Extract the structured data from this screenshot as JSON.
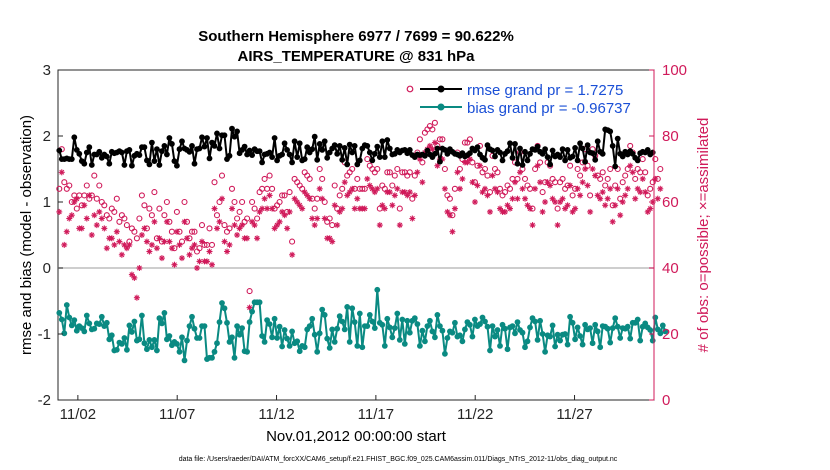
{
  "chart_data": {
    "type": "line",
    "title": "Southern Hemisphere 6977 / 7699 = 90.622%",
    "subtitle": "AIRS_TEMPERATURE @ 831 hPa",
    "xlabel": "Nov.01,2012 00:00:00 start",
    "ylabel_left": "rmse and bias (model - observation)",
    "ylabel_right": "# of obs: o=possible; ×=assimilated",
    "footnote": "data file: /Users/raeder/DAI/ATM_forcXX/CAM6_setup/f.e21.FHIST_BGC.f09_025.CAM6assim.011/Diags_NTrS_2012-11/obs_diag_output.nc",
    "ylim_left": [
      -2,
      3
    ],
    "ylim_right": [
      0,
      100
    ],
    "xlim": [
      0.5,
      30.5
    ],
    "x_tick_values": [
      1.5,
      6.5,
      11.5,
      16.5,
      21.5,
      26.5
    ],
    "x_tick_labels": [
      "11/02",
      "11/07",
      "11/12",
      "11/17",
      "11/22",
      "11/27"
    ],
    "y_ticks_left": [
      "-2",
      "-1",
      "0",
      "1",
      "2",
      "3"
    ],
    "y_ticks_right": [
      "0",
      "20",
      "40",
      "60",
      "80",
      "100"
    ],
    "grid": false,
    "legend_position": "top-right",
    "colors": {
      "rmse": "#000000",
      "bias": "#0a8a82",
      "obs": "#d01a5a",
      "zero_line": "#bdbdbd",
      "legend_text": "#1a4fd6"
    },
    "series": [
      {
        "name": "rmse grand pr = 1.7275",
        "axis": "left",
        "values": [
          1.78,
          1.65,
          1.65,
          1.66,
          1.65,
          1.65,
          1.98,
          1.79,
          1.73,
          1.62,
          1.58,
          1.75,
          1.83,
          1.56,
          1.72,
          1.72,
          1.76,
          1.67,
          1.72,
          1.69,
          1.58,
          1.76,
          1.74,
          1.75,
          1.77,
          1.75,
          1.56,
          1.77,
          1.79,
          1.55,
          1.7,
          1.73,
          1.71,
          1.83,
          1.83,
          1.63,
          1.57,
          1.9,
          1.62,
          1.8,
          1.56,
          1.77,
          1.85,
          1.72,
          1.97,
          1.88,
          1.62,
          1.55,
          1.8,
          1.92,
          1.81,
          1.79,
          1.76,
          1.85,
          1.58,
          1.8,
          1.81,
          1.98,
          1.84,
          1.97,
          1.66,
          1.9,
          1.85,
          2.04,
          1.81,
          2.01,
          2.01,
          1.65,
          1.7,
          2.11,
          1.99,
          2.07,
          1.74,
          1.79,
          1.84,
          1.72,
          1.78,
          1.71,
          1.8,
          1.77,
          1.77,
          1.6,
          1.72,
          1.73,
          1.75,
          1.68,
          1.97,
          1.63,
          1.7,
          1.72,
          1.89,
          1.79,
          1.72,
          1.6,
          1.92,
          1.68,
          1.89,
          1.63,
          1.65,
          1.83,
          1.75,
          1.8,
          1.99,
          1.64,
          1.88,
          1.79,
          1.92,
          1.67,
          1.75,
          1.81,
          1.86,
          1.73,
          1.85,
          1.64,
          1.82,
          1.57,
          1.87,
          1.75,
          1.85,
          1.57,
          1.63,
          1.81,
          1.86,
          1.85,
          1.75,
          1.63,
          1.73,
          1.84,
          1.68,
          1.92,
          1.68,
          1.94,
          1.81,
          1.72,
          1.73,
          1.79,
          1.75,
          1.78,
          1.79,
          1.74,
          1.79,
          1.71,
          1.68,
          1.72,
          1.71,
          1.72,
          1.7,
          1.78,
          1.72,
          1.68,
          1.73,
          1.81,
          1.61,
          1.81,
          1.79,
          1.73,
          1.8,
          1.76,
          1.73,
          1.72,
          1.7,
          1.74,
          1.69,
          1.71,
          1.74,
          1.81,
          1.78,
          1.83,
          1.72,
          1.67,
          1.64,
          1.86,
          1.8,
          1.78,
          1.69,
          1.79,
          1.75,
          1.63,
          1.73,
          1.77,
          1.89,
          1.67,
          1.88,
          1.58,
          1.81,
          1.56,
          1.76,
          1.63,
          1.73,
          1.8,
          1.79,
          1.84,
          1.76,
          1.73,
          1.8,
          1.68,
          1.57,
          1.78,
          1.69,
          1.72,
          1.68,
          1.8,
          1.63,
          1.79,
          1.67,
          1.69,
          1.82,
          1.63,
          1.89,
          1.81,
          1.61,
          1.86,
          1.75,
          1.74,
          1.64,
          1.92,
          1.76,
          1.73,
          2.1,
          2.09,
          2.07,
          1.85,
          1.54,
          1.96,
          1.73,
          1.69,
          1.76,
          1.72,
          1.77,
          1.73,
          1.67,
          1.63,
          1.74,
          1.76,
          1.75,
          1.79,
          1.72,
          1.75
        ]
      },
      {
        "name": "bias grand pr = -0.96737",
        "axis": "left",
        "values": [
          -0.68,
          -0.78,
          -0.99,
          -0.56,
          -0.75,
          -0.87,
          -0.79,
          -0.95,
          -0.88,
          -0.91,
          -0.96,
          -0.72,
          -0.84,
          -0.93,
          -0.92,
          -0.84,
          -0.85,
          -0.74,
          -0.88,
          -0.83,
          -1.08,
          -1.02,
          -1.25,
          -1.24,
          -1.13,
          -1.15,
          -1.06,
          -1.24,
          -0.87,
          -0.97,
          -0.81,
          -1.1,
          -1.08,
          -0.72,
          -1.14,
          -1.23,
          -1.09,
          -1.2,
          -1.09,
          -1.25,
          -0.76,
          -0.84,
          -0.68,
          -1.08,
          -1.03,
          -1.17,
          -1.12,
          -1.15,
          -1.27,
          -1.05,
          -1.4,
          -1.1,
          -0.88,
          -0.74,
          -0.92,
          -1.06,
          -1.06,
          -0.88,
          -0.88,
          -1.38,
          -1.36,
          -1.36,
          -1.27,
          -1.14,
          -0.82,
          -0.53,
          -0.61,
          -0.83,
          -1.12,
          -1.05,
          -1.36,
          -0.88,
          -1.01,
          -0.91,
          -1.26,
          -1.27,
          -0.82,
          -0.66,
          -0.52,
          -0.52,
          -0.52,
          -1.03,
          -1.12,
          -0.79,
          -0.85,
          -1.05,
          -0.77,
          -1.06,
          -0.89,
          -1.19,
          -0.94,
          -1.07,
          -1.18,
          -0.96,
          -1.14,
          -1.11,
          -1.26,
          -1.18,
          -1.2,
          -0.93,
          -0.88,
          -0.77,
          -1.01,
          -1.27,
          -0.99,
          -0.63,
          -0.71,
          -1.07,
          -1.21,
          -0.93,
          -1.12,
          -0.92,
          -0.73,
          -0.81,
          -0.93,
          -0.59,
          -1.12,
          -0.61,
          -0.82,
          -1.18,
          -0.69,
          -1.2,
          -0.88,
          -0.88,
          -0.71,
          -0.81,
          -0.91,
          -0.33,
          -0.83,
          -0.86,
          -1.18,
          -0.77,
          -0.9,
          -1.05,
          -0.91,
          -0.69,
          -1.09,
          -0.78,
          -1.15,
          -0.8,
          -0.98,
          -0.8,
          -0.76,
          -0.85,
          -1.18,
          -0.95,
          -1.11,
          -0.88,
          -0.8,
          -0.96,
          -1.05,
          -0.71,
          -0.88,
          -0.95,
          -1.3,
          -1.06,
          -0.96,
          -0.98,
          -0.83,
          -1.04,
          -1.02,
          -1.11,
          -0.93,
          -0.82,
          -0.86,
          -1.04,
          -0.78,
          -0.88,
          -0.85,
          -0.75,
          -0.81,
          -0.89,
          -1.25,
          -0.88,
          -1.04,
          -0.94,
          -1.18,
          -0.86,
          -0.92,
          -1.23,
          -0.9,
          -0.88,
          -0.99,
          -0.82,
          -0.94,
          -0.98,
          -1.2,
          -1.11,
          -0.9,
          -0.76,
          -0.81,
          -1.09,
          -0.8,
          -1.0,
          -1.27,
          -1.02,
          -1.04,
          -0.87,
          -1.19,
          -1.01,
          -1.1,
          -1.01,
          -1.0,
          -1.16,
          -0.74,
          -0.83,
          -1.08,
          -0.9,
          -1.03,
          -1.16,
          -0.86,
          -0.93,
          -0.91,
          -1.14,
          -0.86,
          -0.96,
          -1.2,
          -0.88,
          -0.89,
          -0.92,
          -1.13,
          -0.91,
          -0.76,
          -0.89,
          -1.06,
          -0.91,
          -0.92,
          -0.89,
          -1.07,
          -0.83,
          -0.83,
          -0.78,
          -1.1,
          -0.89,
          -0.84,
          -0.9,
          -0.94,
          -1.1,
          -0.75,
          -0.93,
          -0.99,
          -0.87,
          -0.96
        ]
      },
      {
        "name": "possible",
        "axis": "right",
        "values": [
          64,
          76,
          66,
          64,
          65,
          60,
          62,
          58,
          62,
          59,
          62,
          65,
          61,
          62,
          68,
          61,
          65,
          60,
          59,
          56,
          55,
          58,
          57,
          61,
          54,
          56,
          55,
          53,
          48,
          52,
          51,
          49,
          55,
          62,
          59,
          52,
          58,
          56,
          63,
          49,
          58,
          48,
          56,
          60,
          54,
          51,
          46,
          57,
          51,
          48,
          60,
          54,
          49,
          51,
          51,
          45,
          46,
          53,
          47,
          47,
          52,
          47,
          66,
          56,
          60,
          68,
          53,
          51,
          52,
          64,
          60,
          55,
          57,
          60,
          54,
          55,
          33,
          60,
          58,
          55,
          63,
          64,
          67,
          64,
          68,
          64,
          58,
          59,
          60,
          62,
          62,
          57,
          63,
          48,
          67,
          66,
          65,
          64,
          69,
          68,
          67,
          61,
          58,
          61,
          70,
          67,
          60,
          54,
          55,
          53,
          65,
          58,
          62,
          64,
          72,
          68,
          69,
          70,
          64,
          67,
          64,
          64,
          64,
          73,
          71,
          70,
          69,
          70,
          58,
          65,
          64,
          69,
          69,
          65,
          68,
          70,
          58,
          69,
          69,
          68,
          69,
          61,
          68,
          75,
          79,
          72,
          81,
          82,
          83,
          82,
          84,
          77,
          79,
          79,
          70,
          62,
          61,
          56,
          64,
          75,
          70,
          73,
          78,
          78,
          79,
          72,
          66,
          71,
          77,
          69,
          70,
          68,
          63,
          74,
          70,
          69,
          64,
          62,
          63,
          65,
          64,
          67,
          72,
          67,
          75,
          70,
          67,
          65,
          64,
          58,
          70,
          77,
          72,
          63,
          66,
          72,
          71,
          67,
          66,
          58,
          66,
          67,
          64,
          65,
          71,
          62,
          64,
          70,
          68,
          72,
          76,
          71,
          62,
          76,
          74,
          68,
          67,
          69,
          65,
          67,
          70,
          59,
          65,
          70,
          61,
          66,
          68,
          70,
          77,
          75,
          67,
          70,
          69,
          73,
          69,
          62,
          64,
          66,
          73,
          67,
          70
        ]
      },
      {
        "name": "assimilated",
        "axis": "right",
        "values": [
          57,
          69,
          47,
          51,
          55,
          56,
          60,
          61,
          52,
          52,
          59,
          55,
          62,
          50,
          56,
          53,
          57,
          55,
          52,
          46,
          49,
          49,
          47,
          51,
          48,
          44,
          47,
          46,
          47,
          38,
          37,
          31,
          40,
          50,
          52,
          48,
          45,
          47,
          54,
          46,
          49,
          43,
          48,
          54,
          48,
          46,
          41,
          51,
          47,
          43,
          54,
          49,
          44,
          46,
          47,
          40,
          42,
          48,
          42,
          42,
          45,
          41,
          58,
          52,
          54,
          61,
          48,
          45,
          47,
          58,
          53,
          50,
          52,
          53,
          49,
          49,
          28,
          54,
          53,
          49,
          57,
          58,
          61,
          58,
          62,
          58,
          52,
          53,
          54,
          57,
          56,
          52,
          57,
          44,
          61,
          60,
          59,
          58,
          63,
          62,
          61,
          55,
          53,
          55,
          64,
          61,
          55,
          49,
          49,
          48,
          59,
          53,
          57,
          58,
          66,
          62,
          63,
          64,
          58,
          61,
          58,
          58,
          58,
          67,
          65,
          64,
          63,
          64,
          53,
          59,
          58,
          63,
          63,
          59,
          62,
          64,
          53,
          63,
          63,
          62,
          63,
          55,
          62,
          69,
          73,
          66,
          75,
          76,
          77,
          76,
          78,
          71,
          73,
          73,
          64,
          57,
          56,
          51,
          58,
          69,
          64,
          67,
          72,
          72,
          73,
          66,
          60,
          65,
          71,
          63,
          64,
          62,
          57,
          68,
          64,
          63,
          58,
          57,
          57,
          59,
          58,
          61,
          66,
          61,
          69,
          64,
          61,
          59,
          58,
          53,
          64,
          71,
          66,
          57,
          60,
          66,
          65,
          61,
          60,
          53,
          60,
          61,
          58,
          59,
          65,
          57,
          58,
          64,
          62,
          66,
          70,
          65,
          57,
          70,
          68,
          62,
          61,
          63,
          59,
          61,
          64,
          54,
          59,
          64,
          56,
          60,
          62,
          64,
          71,
          69,
          61,
          64,
          63,
          67,
          63,
          57,
          58,
          60,
          67,
          61,
          64
        ]
      }
    ]
  }
}
